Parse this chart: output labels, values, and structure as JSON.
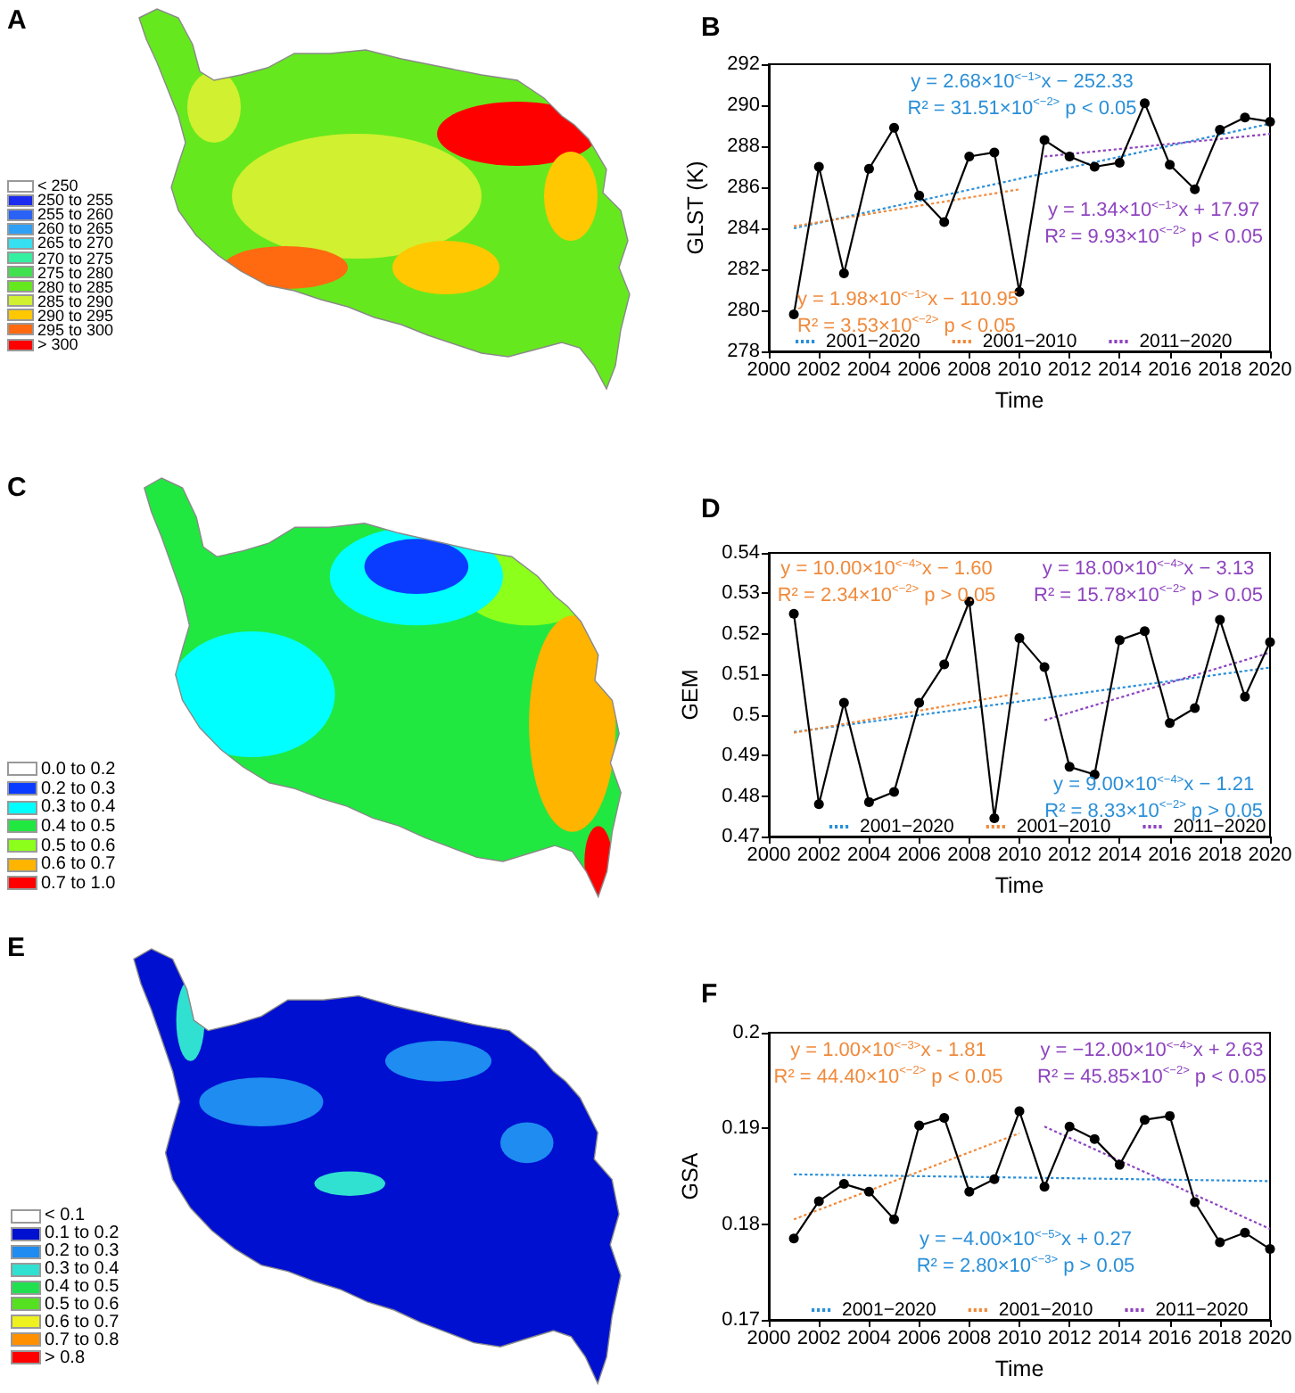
{
  "chart_data": [
    {
      "type": "other",
      "title": "A",
      "categories": [
        "< 250",
        "250 to 255",
        "255 to 260",
        "260 to 265",
        "265 to 270",
        "270 to 275",
        "275 to 280",
        "280 to 285",
        "285 to 290",
        "290 to 295",
        "295 to 300",
        "> 300"
      ],
      "colors": [
        "#ffffff",
        "#1c2bf0",
        "#2a62f5",
        "#2fa0f5",
        "#35e0f0",
        "#35f0a0",
        "#40e050",
        "#66e81e",
        "#d0f030",
        "#ffc800",
        "#ff6a10",
        "#ff0000"
      ]
    },
    {
      "type": "line",
      "title": "B",
      "xlabel": "Time",
      "ylabel": "GLST (K)",
      "x": [
        2001,
        2002,
        2003,
        2004,
        2005,
        2006,
        2007,
        2008,
        2009,
        2010,
        2011,
        2012,
        2013,
        2014,
        2015,
        2016,
        2017,
        2018,
        2019,
        2020
      ],
      "xlim": [
        2000,
        2020
      ],
      "xticks": [
        2000,
        2002,
        2004,
        2006,
        2008,
        2010,
        2012,
        2014,
        2016,
        2018,
        2020
      ],
      "ylim": [
        278,
        292
      ],
      "yticks": [
        278,
        280,
        282,
        284,
        286,
        288,
        290,
        292
      ],
      "legend": "bottom",
      "series": [
        {
          "name": "2001−2020",
          "color": "#2a8fd8",
          "x": [
            2001,
            2020
          ],
          "values": [
            284.0,
            289.1
          ],
          "line_style": "dotted",
          "marker": "none"
        },
        {
          "name": "2001−2010",
          "color": "#f08a3c",
          "x": [
            2001,
            2010
          ],
          "values": [
            284.1,
            285.9
          ],
          "line_style": "dotted",
          "marker": "none"
        },
        {
          "name": "2011−2020",
          "color": "#8e44bf",
          "x": [
            2011,
            2020
          ],
          "values": [
            287.5,
            288.6
          ],
          "line_style": "dotted",
          "marker": "none"
        },
        {
          "color": "#000000",
          "values": [
            279.8,
            287.0,
            281.8,
            286.9,
            288.9,
            285.6,
            284.3,
            287.5,
            287.7,
            280.9,
            288.3,
            287.5,
            287.0,
            287.2,
            290.1,
            287.1,
            285.9,
            288.8,
            289.4,
            289.2
          ],
          "line_style": "solid",
          "marker": "circle"
        }
      ],
      "annotations": [
        "y = 2.68×10$^{<−1>}$x − 252.33\nR² = 31.51×10$^{<−2>}$ p < 0.05",
        "y = 1.98×10$^{<−1>}$x − 110.95\nR² = 3.53×10$^{<−2>}$ p < 0.05",
        "y = 1.34×10$^{<−1>}$x + 17.97\nR² = 9.93×10$^{<−2>}$ p < 0.05"
      ]
    },
    {
      "type": "other",
      "title": "C",
      "categories": [
        "0.0 to 0.2",
        "0.2 to 0.3",
        "0.3 to 0.4",
        "0.4 to 0.5",
        "0.5 to 0.6",
        "0.6 to 0.7",
        "0.7 to 1.0"
      ],
      "colors": [
        "#ffffff",
        "#0a3cff",
        "#00ffff",
        "#20e840",
        "#8cff1a",
        "#ffb400",
        "#ff0000"
      ]
    },
    {
      "type": "line",
      "title": "D",
      "xlabel": "Time",
      "ylabel": "GEM",
      "x": [
        2001,
        2002,
        2003,
        2004,
        2005,
        2006,
        2007,
        2008,
        2009,
        2010,
        2011,
        2012,
        2013,
        2014,
        2015,
        2016,
        2017,
        2018,
        2019,
        2020
      ],
      "xlim": [
        2000,
        2020
      ],
      "xticks": [
        2000,
        2002,
        2004,
        2006,
        2008,
        2010,
        2012,
        2014,
        2016,
        2018,
        2020
      ],
      "ylim": [
        0.47,
        0.54
      ],
      "yticks": [
        0.47,
        0.48,
        0.49,
        0.5,
        0.51,
        0.52,
        0.53,
        0.54
      ],
      "legend": "bottom",
      "series": [
        {
          "name": "2001−2020",
          "color": "#2a8fd8",
          "x": [
            2001,
            2020
          ],
          "values": [
            0.4958,
            0.5117
          ],
          "line_style": "dotted",
          "marker": "none"
        },
        {
          "name": "2001−2010",
          "color": "#f08a3c",
          "x": [
            2001,
            2010
          ],
          "values": [
            0.4956,
            0.5054
          ],
          "line_style": "dotted",
          "marker": "none"
        },
        {
          "name": "2011−2020",
          "color": "#8e44bf",
          "x": [
            2011,
            2020
          ],
          "values": [
            0.4987,
            0.5154
          ],
          "line_style": "dotted",
          "marker": "none"
        },
        {
          "color": "#000000",
          "values": [
            0.525,
            0.478,
            0.503,
            0.4785,
            0.481,
            0.503,
            0.5125,
            0.528,
            0.4745,
            0.519,
            0.5118,
            0.4872,
            0.4853,
            0.5185,
            0.5207,
            0.498,
            0.5017,
            0.5235,
            0.5045,
            0.518
          ],
          "line_style": "solid",
          "marker": "circle"
        }
      ],
      "annotations": [
        "y = 9.00×10$^{<−4>}$x − 1.21\nR² = 8.33×10$^{<−2>}$ p > 0.05",
        "y = 10.00×10$^{<−4>}$x − 1.60\nR² = 2.34×10$^{<−2>}$ p > 0.05",
        "y = 18.00×10$^{<−4>}$x − 3.13\nR² = 15.78×10$^{<−2>}$ p > 0.05"
      ]
    },
    {
      "type": "other",
      "title": "E",
      "categories": [
        "< 0.1",
        "0.1 to 0.2",
        "0.2 to 0.3",
        "0.3 to 0.4",
        "0.4 to 0.5",
        "0.5 to 0.6",
        "0.6 to 0.7",
        "0.7 to 0.8",
        "> 0.8"
      ],
      "colors": [
        "#ffffff",
        "#0010d0",
        "#1e8cf0",
        "#30e0d0",
        "#20e050",
        "#55e020",
        "#eef020",
        "#ff9000",
        "#ff0000"
      ]
    },
    {
      "type": "line",
      "title": "F",
      "xlabel": "Time",
      "ylabel": "GSA",
      "x": [
        2001,
        2002,
        2003,
        2004,
        2005,
        2006,
        2007,
        2008,
        2009,
        2010,
        2011,
        2012,
        2013,
        2014,
        2015,
        2016,
        2017,
        2018,
        2019,
        2020
      ],
      "xlim": [
        2000,
        2020
      ],
      "xticks": [
        2000,
        2002,
        2004,
        2006,
        2008,
        2010,
        2012,
        2014,
        2016,
        2018,
        2020
      ],
      "ylim": [
        0.17,
        0.2
      ],
      "yticks": [
        0.17,
        0.18,
        0.19,
        0.2
      ],
      "legend": "bottom",
      "series": [
        {
          "name": "2001−2020",
          "color": "#2a8fd8",
          "x": [
            2001,
            2020
          ],
          "values": [
            0.1852,
            0.1845
          ],
          "line_style": "dotted",
          "marker": "none"
        },
        {
          "name": "2001−2010",
          "color": "#f08a3c",
          "x": [
            2001,
            2010
          ],
          "values": [
            0.1805,
            0.1895
          ],
          "line_style": "dotted",
          "marker": "none"
        },
        {
          "name": "2011−2020",
          "color": "#8e44bf",
          "x": [
            2011,
            2020
          ],
          "values": [
            0.1902,
            0.1795
          ],
          "line_style": "dotted",
          "marker": "none"
        },
        {
          "color": "#000000",
          "values": [
            0.1785,
            0.1824,
            0.1842,
            0.1834,
            0.1805,
            0.1903,
            0.1911,
            0.1834,
            0.1847,
            0.1918,
            0.1839,
            0.1902,
            0.1889,
            0.1862,
            0.1909,
            0.1913,
            0.1823,
            0.1781,
            0.1791,
            0.1774
          ],
          "line_style": "solid",
          "marker": "circle"
        }
      ],
      "annotations": [
        "y = −4.00×10$^{<−5>}$x + 0.27\nR² = 2.80×10$^{<−3>}$ p > 0.05",
        "y = 1.00×10$^{<−3>}$x - 1.81\nR² = 44.40×10$^{<−2>}$ p < 0.05",
        "y = −12.00×10$^{<−4>}$x + 2.63\nR² = 45.85×10$^{<−2>}$ p < 0.05"
      ]
    }
  ]
}
